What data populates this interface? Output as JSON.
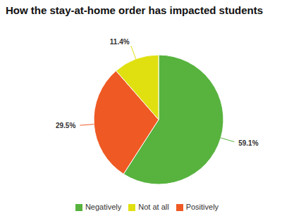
{
  "chart_data": {
    "type": "pie",
    "title": "How the stay-at-home order has impacted students",
    "categories": [
      "Negatively",
      "Positively",
      "Not at all"
    ],
    "values": [
      59.1,
      29.5,
      11.4
    ],
    "value_labels": [
      "59.1%",
      "29.5%",
      "11.4%"
    ],
    "colors": [
      "#57b33e",
      "#ef5a24",
      "#e0e010"
    ],
    "data_labels": true,
    "legend": "bottom"
  }
}
